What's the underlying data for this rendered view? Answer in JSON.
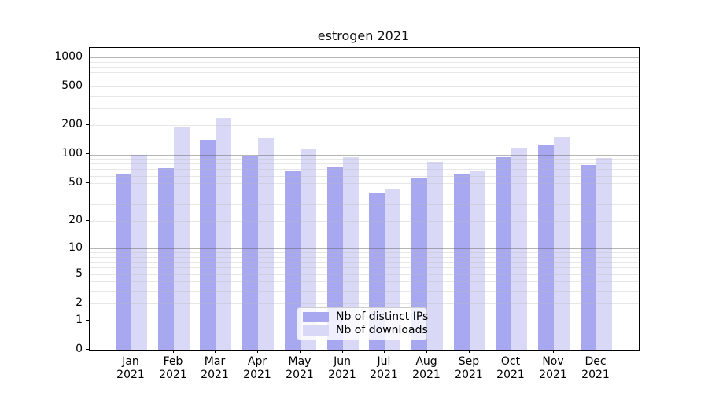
{
  "chart_data": {
    "type": "bar",
    "title": "estrogen 2021",
    "categories": [
      "Jan 2021",
      "Feb 2021",
      "Mar 2021",
      "Apr 2021",
      "May 2021",
      "Jun 2021",
      "Jul 2021",
      "Aug 2021",
      "Sep 2021",
      "Oct 2021",
      "Nov 2021",
      "Dec 2021"
    ],
    "series": [
      {
        "name": "Nb of distinct IPs",
        "color": "#a8a8f0",
        "values": [
          63,
          72,
          141,
          95,
          68,
          74,
          40,
          56,
          63,
          93,
          127,
          77
        ]
      },
      {
        "name": "Nb of downloads",
        "color": "#d9d9f7",
        "values": [
          100,
          195,
          237,
          148,
          115,
          93,
          43,
          83,
          68,
          118,
          153,
          92
        ]
      }
    ],
    "y_ticks": [
      1000,
      500,
      200,
      100,
      50,
      20,
      10,
      5,
      2,
      1,
      0
    ],
    "y_scale": "log10(1+x)",
    "ylim": [
      0,
      1250
    ],
    "xlabel": "",
    "ylabel": "",
    "grid": true,
    "legend": {
      "position": "lower center"
    },
    "colors": {
      "axis": "#000000",
      "major_grid": "#a6a6a6",
      "minor_grid": "#e3e3e3",
      "background": "#ffffff"
    }
  }
}
